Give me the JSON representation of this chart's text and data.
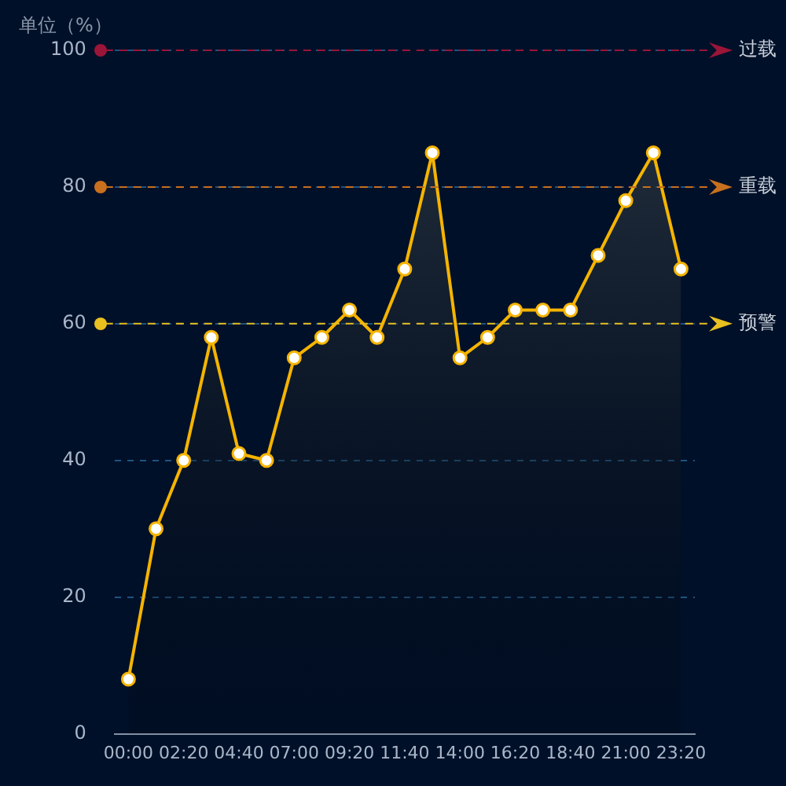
{
  "chart_data": {
    "type": "area",
    "ylabel": "单位（%）",
    "categories": [
      "00:00",
      null,
      "02:20",
      null,
      "04:40",
      null,
      "07:00",
      null,
      "09:20",
      null,
      "11:40",
      null,
      "14:00",
      null,
      "16:20",
      null,
      "18:40",
      null,
      "21:00",
      null,
      "23:20"
    ],
    "series": [
      {
        "color": "#f5b400",
        "values": [
          8,
          30,
          40,
          58,
          41,
          40,
          55,
          58,
          62,
          58,
          68,
          85,
          55,
          58,
          62,
          62,
          62,
          70,
          78,
          85,
          68
        ]
      }
    ],
    "ylim": [
      0,
      100
    ],
    "yticks": [
      0,
      20,
      40,
      60,
      80,
      100
    ],
    "grid": "y",
    "marker": "circle",
    "line_style": "solid",
    "ref_lines": [
      {
        "axis": "y",
        "value": 100,
        "label": "过载",
        "color": "#9b1538",
        "line_style": "dashed"
      },
      {
        "axis": "y",
        "value": 80,
        "label": "重载",
        "color": "#c8701e",
        "line_style": "dashed"
      },
      {
        "axis": "y",
        "value": 60,
        "label": "预警",
        "color": "#e8c020",
        "line_style": "dashed"
      }
    ]
  }
}
